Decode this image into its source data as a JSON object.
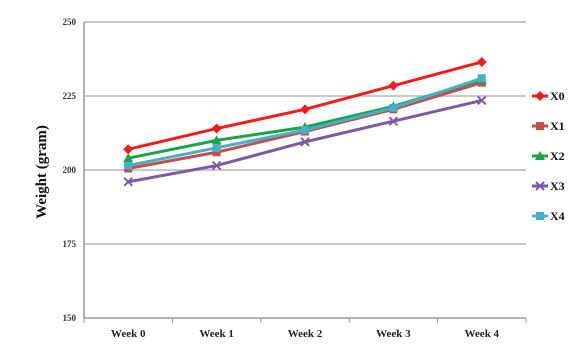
{
  "chart_data": {
    "type": "line",
    "title": "",
    "xlabel": "",
    "ylabel": "Weight (gram)",
    "categories": [
      "Week 0",
      "Week 1",
      "Week 2",
      "Week 3",
      "Week 4"
    ],
    "ylim": [
      150,
      250
    ],
    "yticks": [
      "150",
      "175",
      "200",
      "225",
      "250"
    ],
    "grid": "horizontal",
    "legend_position": "right",
    "series": [
      {
        "name": "X0",
        "color": "#ee1c1c",
        "marker": "diamond",
        "values": [
          207,
          214,
          220.5,
          228.5,
          236.5
        ]
      },
      {
        "name": "X1",
        "color": "#c0504d",
        "marker": "square",
        "values": [
          200.5,
          206,
          213,
          220.5,
          229.5
        ]
      },
      {
        "name": "X2",
        "color": "#1aa34a",
        "marker": "triangle",
        "values": [
          204,
          210,
          214.5,
          221.5,
          230.5
        ]
      },
      {
        "name": "X3",
        "color": "#7b5aa6",
        "marker": "x",
        "values": [
          196,
          201.5,
          209.5,
          216.5,
          223.5
        ]
      },
      {
        "name": "X4",
        "color": "#4bacc6",
        "marker": "square",
        "values": [
          201.5,
          207.5,
          213.5,
          221,
          231
        ]
      }
    ]
  }
}
